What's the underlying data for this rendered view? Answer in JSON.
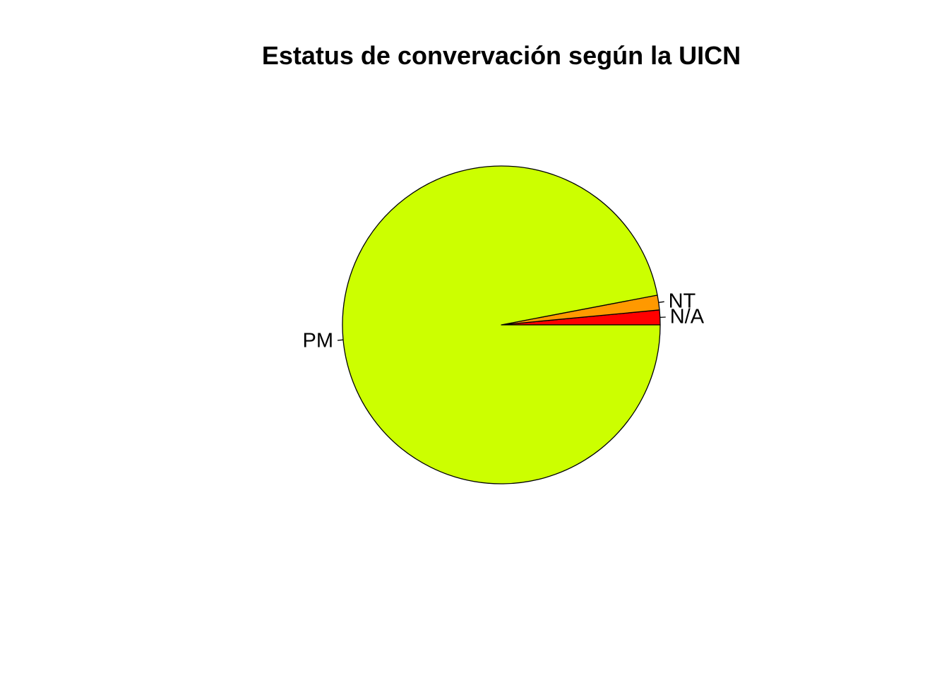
{
  "chart_data": {
    "type": "pie",
    "title": "Estatus de convervación según la UICN",
    "labels": [
      "N/A",
      "NT",
      "PM"
    ],
    "values": [
      1.5,
      1.5,
      97
    ],
    "colors": [
      "#FF0000",
      "#FF9900",
      "#CCFF00"
    ],
    "start_angle_deg": 0,
    "direction": "counterclockwise",
    "border_color": "#000000"
  }
}
